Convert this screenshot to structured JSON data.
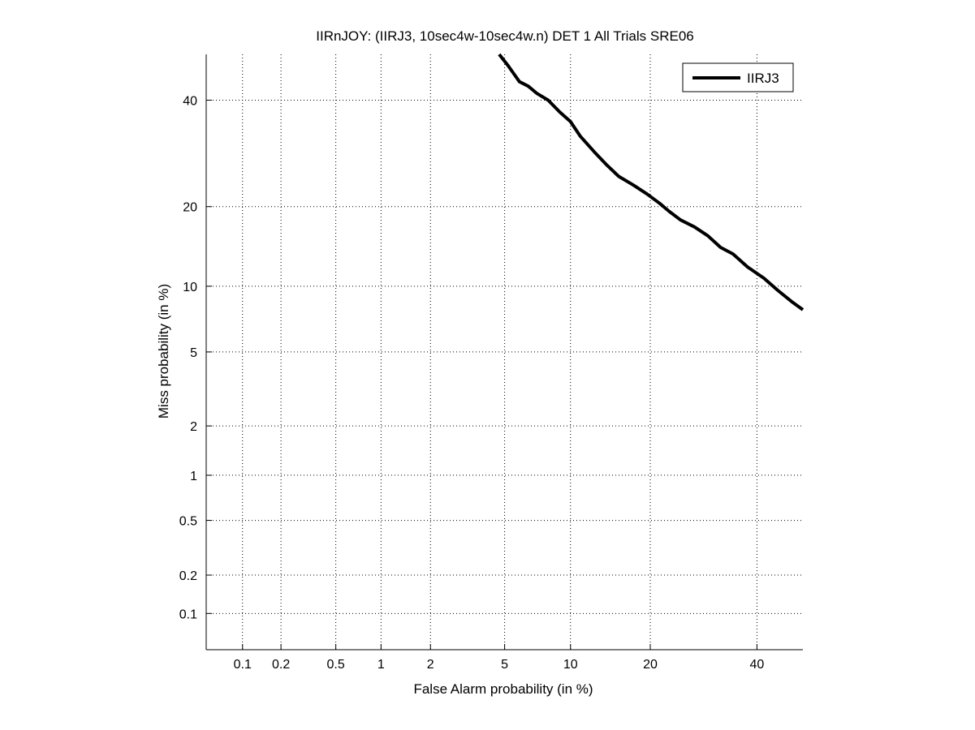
{
  "chart_data": {
    "type": "line",
    "title": "IIRnJOY: (IIRJ3, 10sec4w-10sec4w.n) DET 1 All Trials SRE06",
    "xlabel": "False Alarm probability (in %)",
    "ylabel": "Miss probability (in %)",
    "x_scale": "normal-deviate (probit)",
    "y_scale": "normal-deviate (probit)",
    "xlim": [
      0.05,
      50
    ],
    "ylim": [
      0.05,
      50
    ],
    "grid": true,
    "legend_position": "top-right",
    "x_ticks": [
      {
        "value": 0.1,
        "label": "0.1"
      },
      {
        "value": 0.2,
        "label": "0.2"
      },
      {
        "value": 0.5,
        "label": "0.5"
      },
      {
        "value": 1,
        "label": "1"
      },
      {
        "value": 2,
        "label": "2"
      },
      {
        "value": 5,
        "label": "5"
      },
      {
        "value": 10,
        "label": "10"
      },
      {
        "value": 20,
        "label": "20"
      },
      {
        "value": 40,
        "label": "40"
      }
    ],
    "y_ticks": [
      {
        "value": 0.1,
        "label": "0.1"
      },
      {
        "value": 0.2,
        "label": "0.2"
      },
      {
        "value": 0.5,
        "label": "0.5"
      },
      {
        "value": 1,
        "label": "1"
      },
      {
        "value": 2,
        "label": "2"
      },
      {
        "value": 5,
        "label": "5"
      },
      {
        "value": 10,
        "label": "10"
      },
      {
        "value": 20,
        "label": "20"
      },
      {
        "value": 40,
        "label": "40"
      }
    ],
    "series": [
      {
        "name": "IIRJ3",
        "color": "#000000",
        "x": [
          4.7,
          5.2,
          5.9,
          6.5,
          7.1,
          8.0,
          9.0,
          10.0,
          11.0,
          12.5,
          14.0,
          15.5,
          17.5,
          19.5,
          21.5,
          23.0,
          25.0,
          27.5,
          30.0,
          32.5,
          35.0,
          38.0,
          41.5,
          44.5,
          47.5,
          50.0
        ],
        "y": [
          50.0,
          47.5,
          44.0,
          43.0,
          41.5,
          40.0,
          37.5,
          35.5,
          32.5,
          29.5,
          27.0,
          25.0,
          23.5,
          22.0,
          20.5,
          19.3,
          18.0,
          17.0,
          15.8,
          14.3,
          13.5,
          12.0,
          10.8,
          9.6,
          8.6,
          7.9
        ]
      }
    ]
  }
}
